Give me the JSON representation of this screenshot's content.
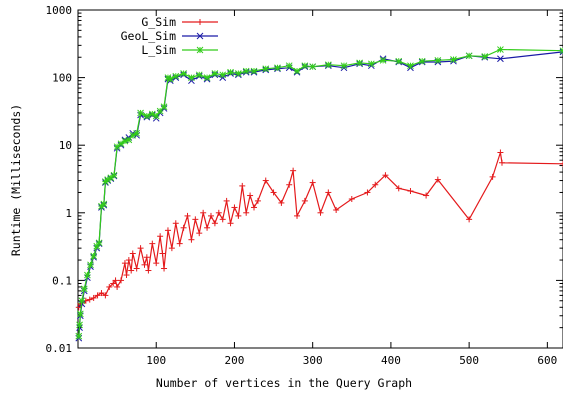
{
  "chart_data": {
    "type": "line",
    "title": "",
    "xlabel": "Number of vertices in the Query Graph",
    "ylabel": "Runtime (Milliseconds)",
    "xlim": [
      0,
      620
    ],
    "ylim": [
      0.01,
      1000
    ],
    "yscale": "log",
    "grid": false,
    "legend_position": "top-left",
    "x_ticks": [
      {
        "value": 100,
        "label": "100"
      },
      {
        "value": 200,
        "label": "200"
      },
      {
        "value": 300,
        "label": "300"
      },
      {
        "value": 400,
        "label": "400"
      },
      {
        "value": 500,
        "label": "500"
      },
      {
        "value": 600,
        "label": "600"
      }
    ],
    "y_ticks": [
      {
        "value": 0.01,
        "label": "0.01"
      },
      {
        "value": 0.1,
        "label": "0.1"
      },
      {
        "value": 1,
        "label": "1"
      },
      {
        "value": 10,
        "label": "10"
      },
      {
        "value": 100,
        "label": "100"
      },
      {
        "value": 1000,
        "label": "1000"
      }
    ],
    "series": [
      {
        "name": "G_Sim",
        "color": "#e41a1c",
        "marker": "plus",
        "x": [
          1,
          3,
          6,
          10,
          15,
          20,
          25,
          30,
          35,
          40,
          45,
          48,
          50,
          55,
          60,
          62,
          65,
          68,
          70,
          75,
          80,
          85,
          88,
          90,
          95,
          100,
          105,
          108,
          110,
          115,
          120,
          125,
          130,
          135,
          140,
          145,
          150,
          155,
          160,
          165,
          170,
          175,
          180,
          185,
          190,
          195,
          200,
          205,
          210,
          215,
          220,
          225,
          230,
          240,
          250,
          260,
          270,
          275,
          280,
          290,
          300,
          310,
          320,
          330,
          350,
          370,
          380,
          393,
          410,
          425,
          445,
          460,
          500,
          530,
          540,
          542,
          620
        ],
        "y": [
          0.04,
          0.045,
          0.047,
          0.05,
          0.052,
          0.055,
          0.06,
          0.065,
          0.06,
          0.08,
          0.09,
          0.1,
          0.08,
          0.1,
          0.18,
          0.12,
          0.2,
          0.14,
          0.25,
          0.15,
          0.3,
          0.17,
          0.22,
          0.14,
          0.35,
          0.18,
          0.45,
          0.25,
          0.15,
          0.55,
          0.3,
          0.7,
          0.35,
          0.6,
          0.9,
          0.4,
          0.8,
          0.5,
          1.0,
          0.6,
          0.9,
          0.7,
          1.0,
          0.8,
          1.5,
          0.7,
          1.2,
          0.9,
          2.5,
          1.0,
          1.8,
          1.2,
          1.5,
          3.0,
          2.0,
          1.4,
          2.6,
          4.2,
          0.9,
          1.5,
          2.8,
          1.0,
          2.0,
          1.1,
          1.6,
          2.0,
          2.6,
          3.6,
          2.3,
          2.1,
          1.8,
          3.1,
          0.8,
          3.4,
          7.8,
          5.5,
          5.3
        ]
      },
      {
        "name": "GeoL_Sim",
        "color": "#1a1aa6",
        "marker": "cross",
        "x": [
          1,
          2,
          3,
          5,
          8,
          12,
          16,
          20,
          24,
          27,
          30,
          33,
          35,
          38,
          42,
          46,
          50,
          55,
          60,
          65,
          70,
          75,
          80,
          88,
          95,
          100,
          105,
          110,
          115,
          118,
          125,
          135,
          145,
          155,
          165,
          175,
          185,
          195,
          205,
          215,
          225,
          240,
          255,
          270,
          280,
          290,
          300,
          320,
          340,
          360,
          375,
          390,
          410,
          425,
          440,
          460,
          480,
          500,
          520,
          540,
          620
        ],
        "y": [
          0.014,
          0.02,
          0.03,
          0.045,
          0.07,
          0.11,
          0.16,
          0.22,
          0.3,
          0.35,
          1.2,
          1.3,
          2.8,
          3.0,
          3.2,
          3.5,
          9.0,
          10.0,
          12.0,
          13.0,
          15.0,
          14.0,
          28.0,
          26.0,
          28.0,
          25.0,
          30.0,
          35.0,
          95.0,
          90.0,
          100.0,
          110.0,
          90.0,
          105.0,
          95.0,
          110.0,
          100.0,
          115.0,
          110.0,
          120.0,
          120.0,
          130.0,
          135.0,
          140.0,
          120.0,
          145.0,
          145.0,
          150.0,
          140.0,
          160.0,
          150.0,
          190.0,
          170.0,
          140.0,
          170.0,
          170.0,
          175.0,
          210.0,
          200.0,
          190.0,
          240.0
        ]
      },
      {
        "name": "L_Sim",
        "color": "#33cc1a",
        "marker": "star",
        "x": [
          1,
          2,
          3,
          5,
          8,
          12,
          16,
          20,
          24,
          27,
          30,
          33,
          35,
          38,
          42,
          46,
          50,
          55,
          60,
          65,
          70,
          75,
          80,
          88,
          95,
          100,
          105,
          110,
          115,
          118,
          125,
          135,
          145,
          155,
          165,
          175,
          185,
          195,
          205,
          215,
          225,
          240,
          255,
          270,
          280,
          290,
          300,
          320,
          340,
          360,
          375,
          390,
          410,
          425,
          440,
          460,
          480,
          500,
          520,
          540,
          620
        ],
        "y": [
          0.015,
          0.022,
          0.032,
          0.05,
          0.075,
          0.12,
          0.17,
          0.23,
          0.32,
          0.36,
          1.25,
          1.35,
          2.9,
          3.1,
          3.3,
          3.6,
          9.5,
          10.5,
          11.5,
          12.0,
          14.0,
          15.0,
          30.0,
          27.0,
          29.0,
          27.0,
          32.0,
          37.0,
          100.0,
          95.0,
          105.0,
          115.0,
          100.0,
          110.0,
          100.0,
          115.0,
          110.0,
          120.0,
          115.0,
          125.0,
          125.0,
          135.0,
          140.0,
          150.0,
          125.0,
          150.0,
          145.0,
          155.0,
          150.0,
          165.0,
          160.0,
          180.0,
          175.0,
          150.0,
          175.0,
          180.0,
          185.0,
          210.0,
          205.0,
          260.0,
          250.0
        ]
      }
    ]
  }
}
